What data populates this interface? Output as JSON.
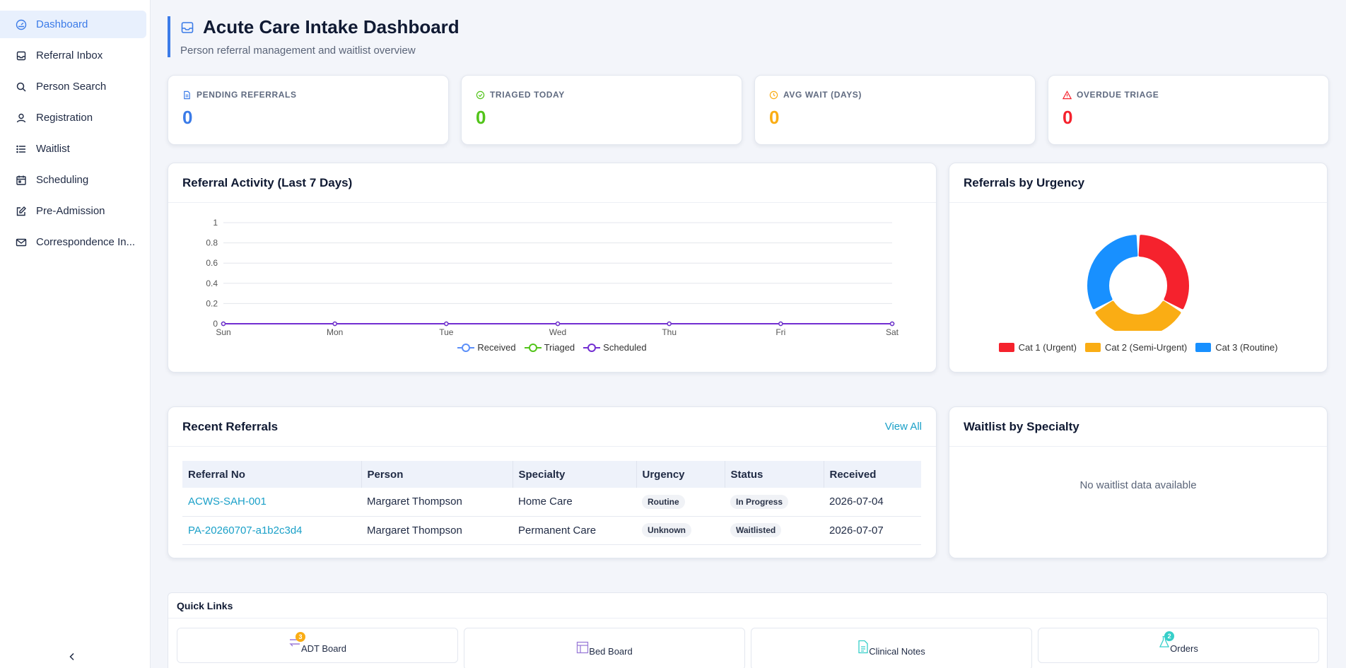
{
  "sidebar": {
    "items": [
      {
        "label": "Dashboard",
        "icon": "dashboard-icon",
        "active": true
      },
      {
        "label": "Referral Inbox",
        "icon": "inbox-icon"
      },
      {
        "label": "Person Search",
        "icon": "search-icon"
      },
      {
        "label": "Registration",
        "icon": "user-icon"
      },
      {
        "label": "Waitlist",
        "icon": "list-icon"
      },
      {
        "label": "Scheduling",
        "icon": "calendar-icon"
      },
      {
        "label": "Pre-Admission",
        "icon": "edit-icon"
      },
      {
        "label": "Correspondence In...",
        "icon": "mail-icon"
      }
    ],
    "collapse_icon": "chevron-left-icon"
  },
  "header": {
    "title": "Acute Care Intake Dashboard",
    "subtitle": "Person referral management and waitlist overview"
  },
  "stats": [
    {
      "label": "PENDING REFERRALS",
      "value": "0",
      "color": "#3b7be8",
      "icon": "document-icon"
    },
    {
      "label": "TRIAGED TODAY",
      "value": "0",
      "color": "#52c41a",
      "icon": "check-circle-icon"
    },
    {
      "label": "AVG WAIT (DAYS)",
      "value": "0",
      "color": "#faad14",
      "icon": "clock-icon"
    },
    {
      "label": "OVERDUE TRIAGE",
      "value": "0",
      "color": "#f5222d",
      "icon": "warning-icon"
    }
  ],
  "activity_chart": {
    "title": "Referral Activity (Last 7 Days)",
    "chart_data": {
      "type": "line",
      "categories": [
        "Sun",
        "Mon",
        "Tue",
        "Wed",
        "Thu",
        "Fri",
        "Sat"
      ],
      "series": [
        {
          "name": "Received",
          "values": [
            0,
            0,
            0,
            0,
            0,
            0,
            0
          ],
          "color": "#5b8ff9"
        },
        {
          "name": "Triaged",
          "values": [
            0,
            0,
            0,
            0,
            0,
            0,
            0
          ],
          "color": "#52c41a"
        },
        {
          "name": "Scheduled",
          "values": [
            0,
            0,
            0,
            0,
            0,
            0,
            0
          ],
          "color": "#722ed1"
        }
      ],
      "yticks": [
        "0",
        "0.2",
        "0.4",
        "0.6",
        "0.8",
        "1"
      ],
      "ylim": [
        0,
        1
      ],
      "grid": true,
      "legend": "bottom"
    }
  },
  "urgency_chart": {
    "title": "Referrals by Urgency",
    "chart_data": {
      "type": "pie",
      "categories": [
        "Cat 1 (Urgent)",
        "Cat 2 (Semi-Urgent)",
        "Cat 3 (Routine)"
      ],
      "values": [
        1,
        1,
        1
      ],
      "colors": [
        "#f5222d",
        "#faad14",
        "#1890ff"
      ],
      "legend": "bottom"
    }
  },
  "recent_referrals": {
    "title": "Recent Referrals",
    "view_all": "View All",
    "columns": [
      "Referral No",
      "Person",
      "Specialty",
      "Urgency",
      "Status",
      "Received"
    ],
    "rows": [
      {
        "ref": "ACWS-SAH-001",
        "person": "Margaret Thompson",
        "specialty": "Home Care",
        "urgency": "Routine",
        "status": "In Progress",
        "received": "2026-07-04"
      },
      {
        "ref": "PA-20260707-a1b2c3d4",
        "person": "Margaret Thompson",
        "specialty": "Permanent Care",
        "urgency": "Unknown",
        "status": "Waitlisted",
        "received": "2026-07-07"
      }
    ]
  },
  "waitlist": {
    "title": "Waitlist by Specialty",
    "empty": "No waitlist data available"
  },
  "quick_links": {
    "title": "Quick Links",
    "items": [
      {
        "label": "ADT Board",
        "icon": "transfer-icon",
        "badge": "3",
        "badge_color": "#faad14"
      },
      {
        "label": "Bed Board",
        "icon": "layout-icon"
      },
      {
        "label": "Clinical Notes",
        "icon": "notes-icon"
      },
      {
        "label": "Orders",
        "icon": "flask-icon",
        "badge": "2",
        "badge_color": "#36cfc9"
      }
    ]
  }
}
